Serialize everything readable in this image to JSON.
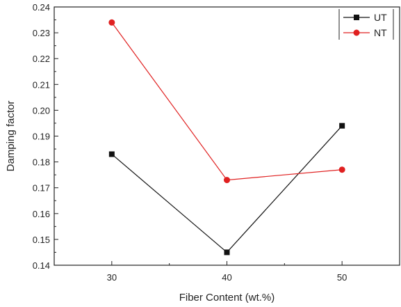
{
  "chart_data": {
    "type": "line",
    "title": "",
    "xlabel": "Fiber Content (wt.%)",
    "ylabel": "Damping factor",
    "x": [
      30,
      40,
      50
    ],
    "xlim": [
      25,
      55
    ],
    "ylim": [
      0.14,
      0.24
    ],
    "x_ticks": [
      "30",
      "40",
      "50"
    ],
    "y_ticks": [
      "0.14",
      "0.15",
      "0.16",
      "0.17",
      "0.18",
      "0.19",
      "0.20",
      "0.21",
      "0.22",
      "0.23",
      "0.24"
    ],
    "grid": false,
    "legend_position": "top-right",
    "series": [
      {
        "name": "UT",
        "values": [
          0.183,
          0.145,
          0.194
        ],
        "color": "#111111",
        "marker": "square"
      },
      {
        "name": "NT",
        "values": [
          0.234,
          0.173,
          0.177
        ],
        "color": "#e02020",
        "marker": "circle"
      }
    ]
  }
}
